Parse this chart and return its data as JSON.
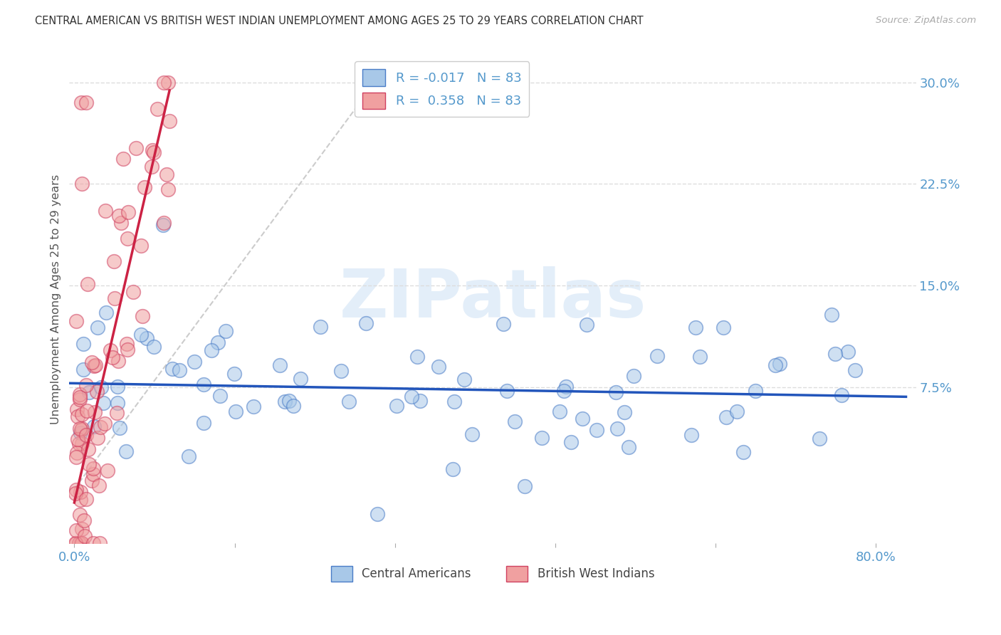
{
  "title": "CENTRAL AMERICAN VS BRITISH WEST INDIAN UNEMPLOYMENT AMONG AGES 25 TO 29 YEARS CORRELATION CHART",
  "source": "Source: ZipAtlas.com",
  "ylabel": "Unemployment Among Ages 25 to 29 years",
  "ytick_vals": [
    0.075,
    0.15,
    0.225,
    0.3
  ],
  "ytick_labels": [
    "7.5%",
    "15.0%",
    "22.5%",
    "30.0%"
  ],
  "xlim": [
    -0.005,
    0.84
  ],
  "ylim": [
    -0.04,
    0.32
  ],
  "r_blue": "-0.017",
  "n_blue": "83",
  "r_pink": "0.358",
  "n_pink": "83",
  "legend_label_blue": "Central Americans",
  "legend_label_pink": "British West Indians",
  "blue_fill": "#a8c8e8",
  "pink_fill": "#f0a0a0",
  "blue_edge": "#4a7cc7",
  "pink_edge": "#d04060",
  "blue_line_color": "#2255bb",
  "pink_line_color": "#cc2244",
  "diag_color": "#cccccc",
  "grid_color": "#dddddd",
  "watermark": "ZIPatlas",
  "tick_color": "#5599cc",
  "title_color": "#333333",
  "source_color": "#aaaaaa",
  "ylabel_color": "#555555"
}
